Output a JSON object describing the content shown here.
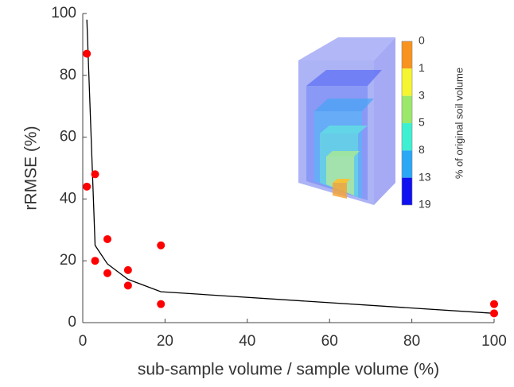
{
  "chart_data": {
    "type": "scatter",
    "x_label": "sub-sample volume / sample volume (%)",
    "y_label": "rRMSE (%)",
    "xlim": [
      0,
      100
    ],
    "xticks": [
      0,
      20,
      40,
      60,
      80,
      100
    ],
    "ylim": [
      0,
      100
    ],
    "yticks": [
      0,
      20,
      40,
      60,
      80,
      100
    ],
    "series": [
      {
        "type": "scatter",
        "color": "#ff0000",
        "x": [
          1,
          1,
          3,
          3,
          6,
          6,
          11,
          11,
          19,
          19,
          100,
          100
        ],
        "values": [
          87,
          44,
          48,
          20,
          27,
          16,
          17,
          12,
          25,
          6,
          6,
          3
        ]
      },
      {
        "type": "line",
        "color": "#000000",
        "x": [
          1,
          3,
          6,
          11,
          19,
          100
        ],
        "values": [
          98,
          25,
          19,
          14,
          10,
          3
        ]
      }
    ],
    "colorbar": {
      "label": "% of original soil volume",
      "ticks": [
        0,
        1,
        3,
        5,
        8,
        13,
        19
      ],
      "colors": [
        "#f7931e",
        "#f5f532",
        "#9be86a",
        "#3ef0d2",
        "#2aa7f5",
        "#1010f0"
      ]
    }
  }
}
